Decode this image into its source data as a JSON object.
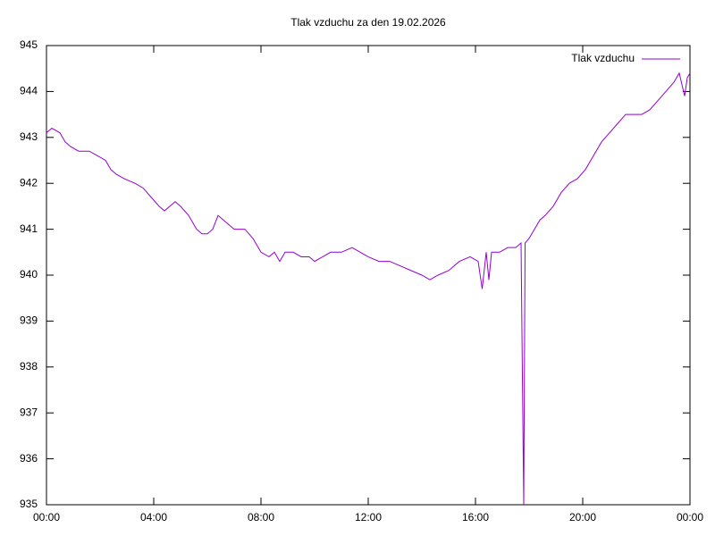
{
  "chart_data": {
    "type": "line",
    "title": "Tlak vzduchu za den 19.02.2026",
    "x": [
      0.0,
      0.2,
      0.5,
      0.7,
      0.9,
      1.2,
      1.6,
      1.9,
      2.2,
      2.4,
      2.6,
      2.9,
      3.3,
      3.6,
      3.9,
      4.2,
      4.4,
      4.6,
      4.8,
      5.0,
      5.3,
      5.6,
      5.8,
      6.0,
      6.2,
      6.4,
      6.6,
      6.8,
      7.0,
      7.4,
      7.7,
      8.0,
      8.3,
      8.5,
      8.7,
      8.9,
      9.2,
      9.5,
      9.8,
      10.0,
      10.3,
      10.6,
      11.0,
      11.4,
      11.7,
      12.0,
      12.4,
      12.8,
      13.2,
      13.6,
      14.0,
      14.3,
      14.6,
      15.0,
      15.4,
      15.8,
      16.1,
      16.25,
      16.4,
      16.5,
      16.6,
      16.9,
      17.2,
      17.5,
      17.7,
      17.75,
      17.8,
      17.85,
      18.0,
      18.2,
      18.4,
      18.6,
      18.9,
      19.2,
      19.5,
      19.8,
      20.1,
      20.4,
      20.7,
      21.0,
      21.3,
      21.6,
      21.9,
      22.2,
      22.5,
      22.8,
      23.1,
      23.4,
      23.6,
      23.8,
      23.9,
      24.0
    ],
    "series": [
      {
        "name": "Tlak vzduchu",
        "color": "#9400d3",
        "values": [
          943.1,
          943.2,
          943.1,
          942.9,
          942.8,
          942.7,
          942.7,
          942.6,
          942.5,
          942.3,
          942.2,
          942.1,
          942.0,
          941.9,
          941.7,
          941.5,
          941.4,
          941.5,
          941.6,
          941.5,
          941.3,
          941.0,
          940.9,
          940.9,
          941.0,
          941.3,
          941.2,
          941.1,
          941.0,
          941.0,
          940.8,
          940.5,
          940.4,
          940.5,
          940.3,
          940.5,
          940.5,
          940.4,
          940.4,
          940.3,
          940.4,
          940.5,
          940.5,
          940.6,
          940.5,
          940.4,
          940.3,
          940.3,
          940.2,
          940.1,
          940.0,
          939.9,
          940.0,
          940.1,
          940.3,
          940.4,
          940.3,
          939.7,
          940.5,
          939.9,
          940.5,
          940.5,
          940.6,
          940.6,
          940.7,
          937.8,
          935.0,
          940.7,
          940.8,
          941.0,
          941.2,
          941.3,
          941.5,
          941.8,
          942.0,
          942.1,
          942.3,
          942.6,
          942.9,
          943.1,
          943.3,
          943.5,
          943.5,
          943.5,
          943.6,
          943.8,
          944.0,
          944.2,
          944.4,
          943.9,
          944.3,
          944.4
        ]
      }
    ],
    "xlim": [
      0,
      24
    ],
    "xticks": [
      {
        "value": 0,
        "label": "00:00"
      },
      {
        "value": 4,
        "label": "04:00"
      },
      {
        "value": 8,
        "label": "08:00"
      },
      {
        "value": 12,
        "label": "12:00"
      },
      {
        "value": 16,
        "label": "16:00"
      },
      {
        "value": 20,
        "label": "20:00"
      },
      {
        "value": 24,
        "label": "00:00"
      }
    ],
    "ylim": [
      935,
      945
    ],
    "yticks": [
      935,
      936,
      937,
      938,
      939,
      940,
      941,
      942,
      943,
      944,
      945
    ],
    "legend": "upper right",
    "grid": false
  }
}
